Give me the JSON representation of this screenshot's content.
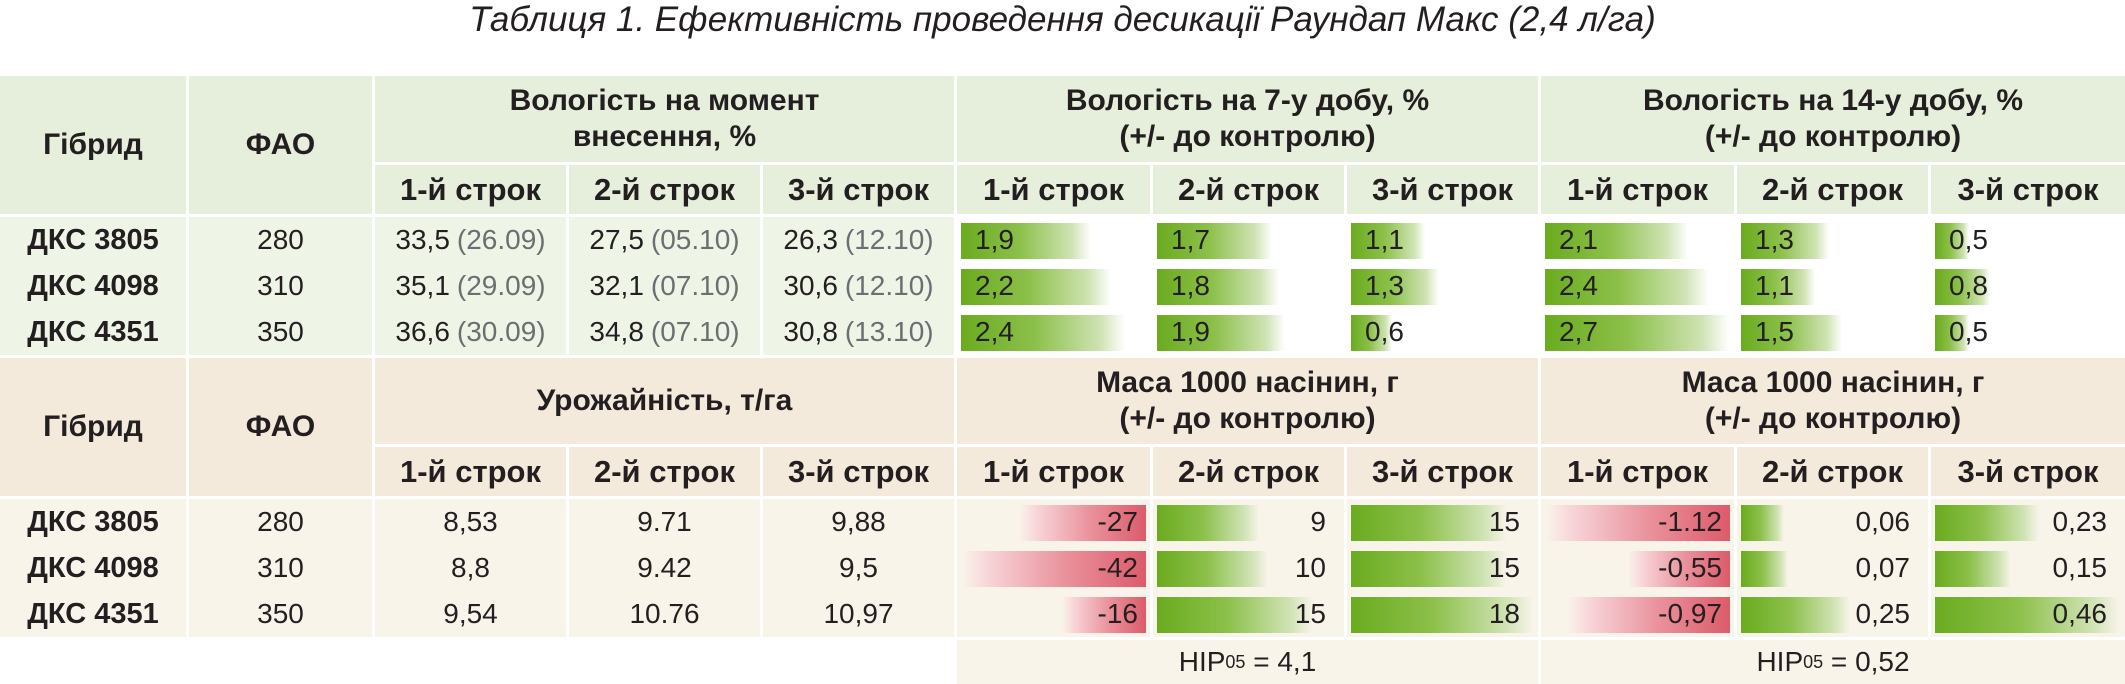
{
  "title": "Таблиця 1. Ефективність проведення десикації Раундап Макс (2,4 л/га)",
  "top": {
    "col_hybrid": "Гібрид",
    "col_fao": "ФАО",
    "group1": "Вологість на момент\nвнесення, %",
    "group2": "Вологість на 7-у добу, %\n(+/- до контролю)",
    "group3": "Вологість на 14-у добу, %\n(+/- до контролю)",
    "terms": [
      "1-й строк",
      "2-й строк",
      "3-й строк"
    ],
    "rows": [
      {
        "hybrid": "ДКС 3805",
        "fao": "280",
        "m": [
          {
            "v": "33,5",
            "d": "(26.09)"
          },
          {
            "v": "27,5",
            "d": "(05.10)"
          },
          {
            "v": "26,3",
            "d": "(12.10)"
          }
        ],
        "d7": [
          "1,9",
          "1,7",
          "1,1"
        ],
        "d7v": [
          1.9,
          1.7,
          1.1
        ],
        "d14": [
          "2,1",
          "1,3",
          "0,5"
        ],
        "d14v": [
          2.1,
          1.3,
          0.5
        ]
      },
      {
        "hybrid": "ДКС 4098",
        "fao": "310",
        "m": [
          {
            "v": "35,1",
            "d": "(29.09)"
          },
          {
            "v": "32,1",
            "d": "(07.10)"
          },
          {
            "v": "30,6",
            "d": "(12.10)"
          }
        ],
        "d7": [
          "2,2",
          "1,8",
          "1,3"
        ],
        "d7v": [
          2.2,
          1.8,
          1.3
        ],
        "d14": [
          "2,4",
          "1,1",
          "0,8"
        ],
        "d14v": [
          2.4,
          1.1,
          0.8
        ]
      },
      {
        "hybrid": "ДКС 4351",
        "fao": "350",
        "m": [
          {
            "v": "36,6",
            "d": "(30.09)"
          },
          {
            "v": "34,8",
            "d": "(07.10)"
          },
          {
            "v": "30,8",
            "d": "(13.10)"
          }
        ],
        "d7": [
          "2,4",
          "1,9",
          "0,6"
        ],
        "d7v": [
          2.4,
          1.9,
          0.6
        ],
        "d14": [
          "2,7",
          "1,5",
          "0,5"
        ],
        "d14v": [
          2.7,
          1.5,
          0.5
        ]
      }
    ]
  },
  "bottom": {
    "col_hybrid": "Гібрид",
    "col_fao": "ФАО",
    "group1": "Урожайність, т/га",
    "group2": "Маса 1000 насінин, г\n(+/- до контролю)",
    "group3": "Маса 1000 насінин, г\n(+/- до контролю)",
    "terms": [
      "1-й строк",
      "2-й строк",
      "3-й строк"
    ],
    "rows": [
      {
        "hybrid": "ДКС 3805",
        "fao": "280",
        "y": [
          "8,53",
          "9.71",
          "9,88"
        ],
        "g2": [
          "-27",
          "9",
          "15"
        ],
        "g2v": [
          -27,
          9,
          15
        ],
        "g3": [
          "-1.12",
          "0,06",
          "0,23"
        ],
        "g3v": [
          -1.12,
          0.06,
          0.23
        ]
      },
      {
        "hybrid": "ДКС 4098",
        "fao": "310",
        "y": [
          "8,8",
          "9.42",
          "9,5"
        ],
        "g2": [
          "-42",
          "10",
          "15"
        ],
        "g2v": [
          -42,
          10,
          15
        ],
        "g3": [
          "-0,55",
          "0,07",
          "0,15"
        ],
        "g3v": [
          -0.55,
          0.07,
          0.15
        ]
      },
      {
        "hybrid": "ДКС 4351",
        "fao": "350",
        "y": [
          "9,54",
          "10.76",
          "10,97"
        ],
        "g2": [
          "-16",
          "15",
          "18"
        ],
        "g2v": [
          -16,
          15,
          18
        ],
        "g3": [
          "-0,97",
          "0,25",
          "0,46"
        ],
        "g3v": [
          -0.97,
          0.25,
          0.46
        ]
      }
    ],
    "nir_prefix": "НІР",
    "nir_sub": "05",
    "nir2_value": " = 4,1",
    "nir3_value": " = 0,52"
  },
  "colors": {
    "positive": "#6aab1f",
    "negative": "#dc5b6a",
    "header_green": "#e6efdb",
    "header_beige": "#f4eadb"
  }
}
